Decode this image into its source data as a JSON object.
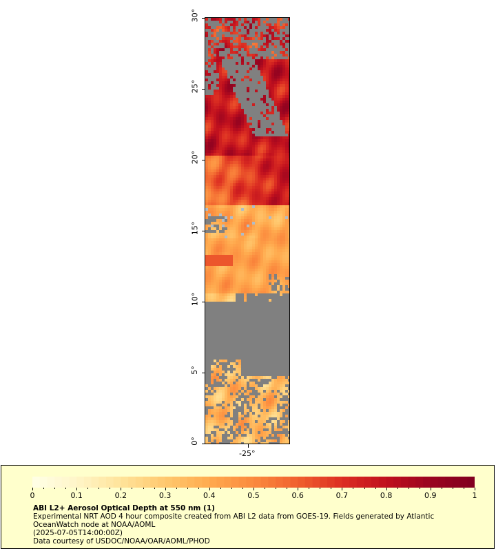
{
  "map": {
    "y_labels": [
      "0°",
      "5°",
      "10°",
      "15°",
      "20°",
      "25°",
      "30°"
    ],
    "x_labels": [
      "-25°"
    ],
    "land_color": "#808080",
    "cloud_color": "#b0bcc8"
  },
  "legend": {
    "ticks": [
      "0",
      "0.1",
      "0.2",
      "0.3",
      "0.4",
      "0.5",
      "0.6",
      "0.7",
      "0.8",
      "0.9",
      "1"
    ],
    "colors": [
      "#ffffe6",
      "#fff5c8",
      "#ffe39a",
      "#ffc86e",
      "#ffaa4e",
      "#fb8a3e",
      "#f0602e",
      "#dc2e22",
      "#c0101e",
      "#9a0420",
      "#800020"
    ],
    "title": "ABI L2+ Aerosol Optical Depth at 550 nm (1)",
    "line1": "Experimental NRT AOD 4 hour composite created from ABI L2 data from GOES-19. Fields generated by Atlantic",
    "line2": "OceanWatch node at NOAA/AOML",
    "line3": "(2025-07-05T14:00:00Z)",
    "line4": "Data courtesy of USDOC/NOAA/OAR/AOML/PHOD"
  }
}
